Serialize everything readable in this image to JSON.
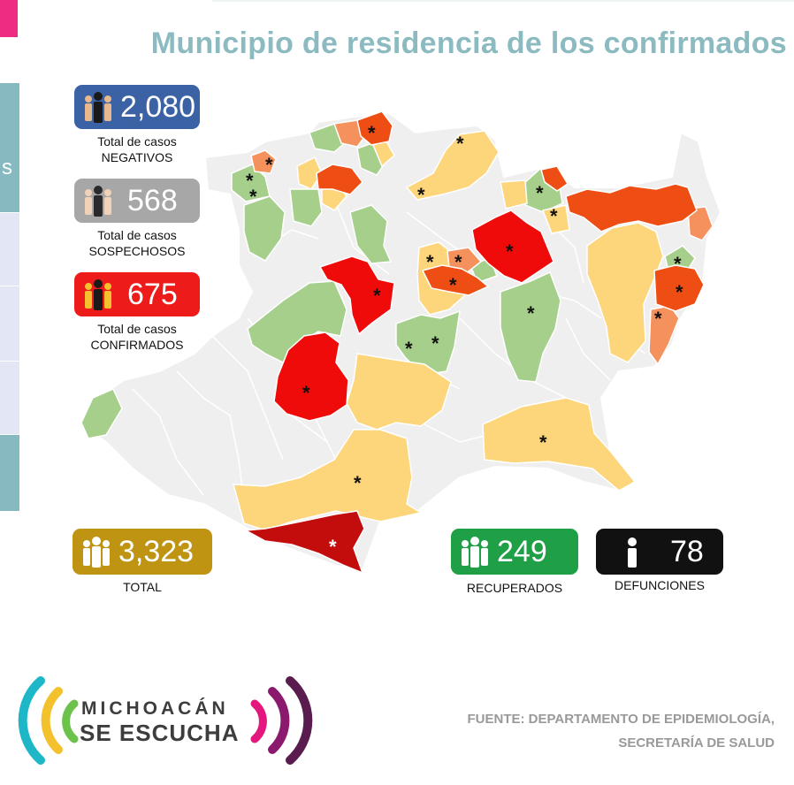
{
  "title": "Municipio de residencia de los confirmados",
  "left_strip": {
    "fragment": "s"
  },
  "stats": {
    "negativos": {
      "value": "2,080",
      "label_1": "Total de casos",
      "label_2": "NEGATIVOS",
      "color": "#3a62a5",
      "icon": "people-icon"
    },
    "sospechosos": {
      "value": "568",
      "label_1": "Total de casos",
      "label_2": "SOSPECHOSOS",
      "color": "#a7a7a7",
      "icon": "people-icon"
    },
    "confirmados": {
      "value": "675",
      "label_1": "Total de casos",
      "label_2": "CONFIRMADOS",
      "color": "#ee1b1b",
      "icon": "people-icon"
    },
    "total": {
      "value": "3,323",
      "label": "TOTAL",
      "color": "#bf9412",
      "icon": "people-icon"
    },
    "recuperados": {
      "value": "249",
      "label": "RECUPERADOS",
      "color": "#1fa046",
      "icon": "people-icon"
    },
    "defunciones": {
      "value": "78",
      "label": "DEFUNCIONES",
      "color": "#111111",
      "icon": "person-icon"
    }
  },
  "map_colors": {
    "none": "#efefef",
    "green": "#a6cf8c",
    "yellow": "#fdd57a",
    "light_orange": "#f5915c",
    "orange": "#ee4e13",
    "red": "#f00b0b",
    "dark_red": "#c30c0c"
  },
  "logo": {
    "line_1": "MICHOACÁN",
    "line_2": "SE ESCUCHA"
  },
  "source": {
    "line_1": "FUENTE: DEPARTAMENTO DE EPIDEMIOLOGÍA,",
    "line_2": "SECRETARÍA DE SALUD"
  }
}
